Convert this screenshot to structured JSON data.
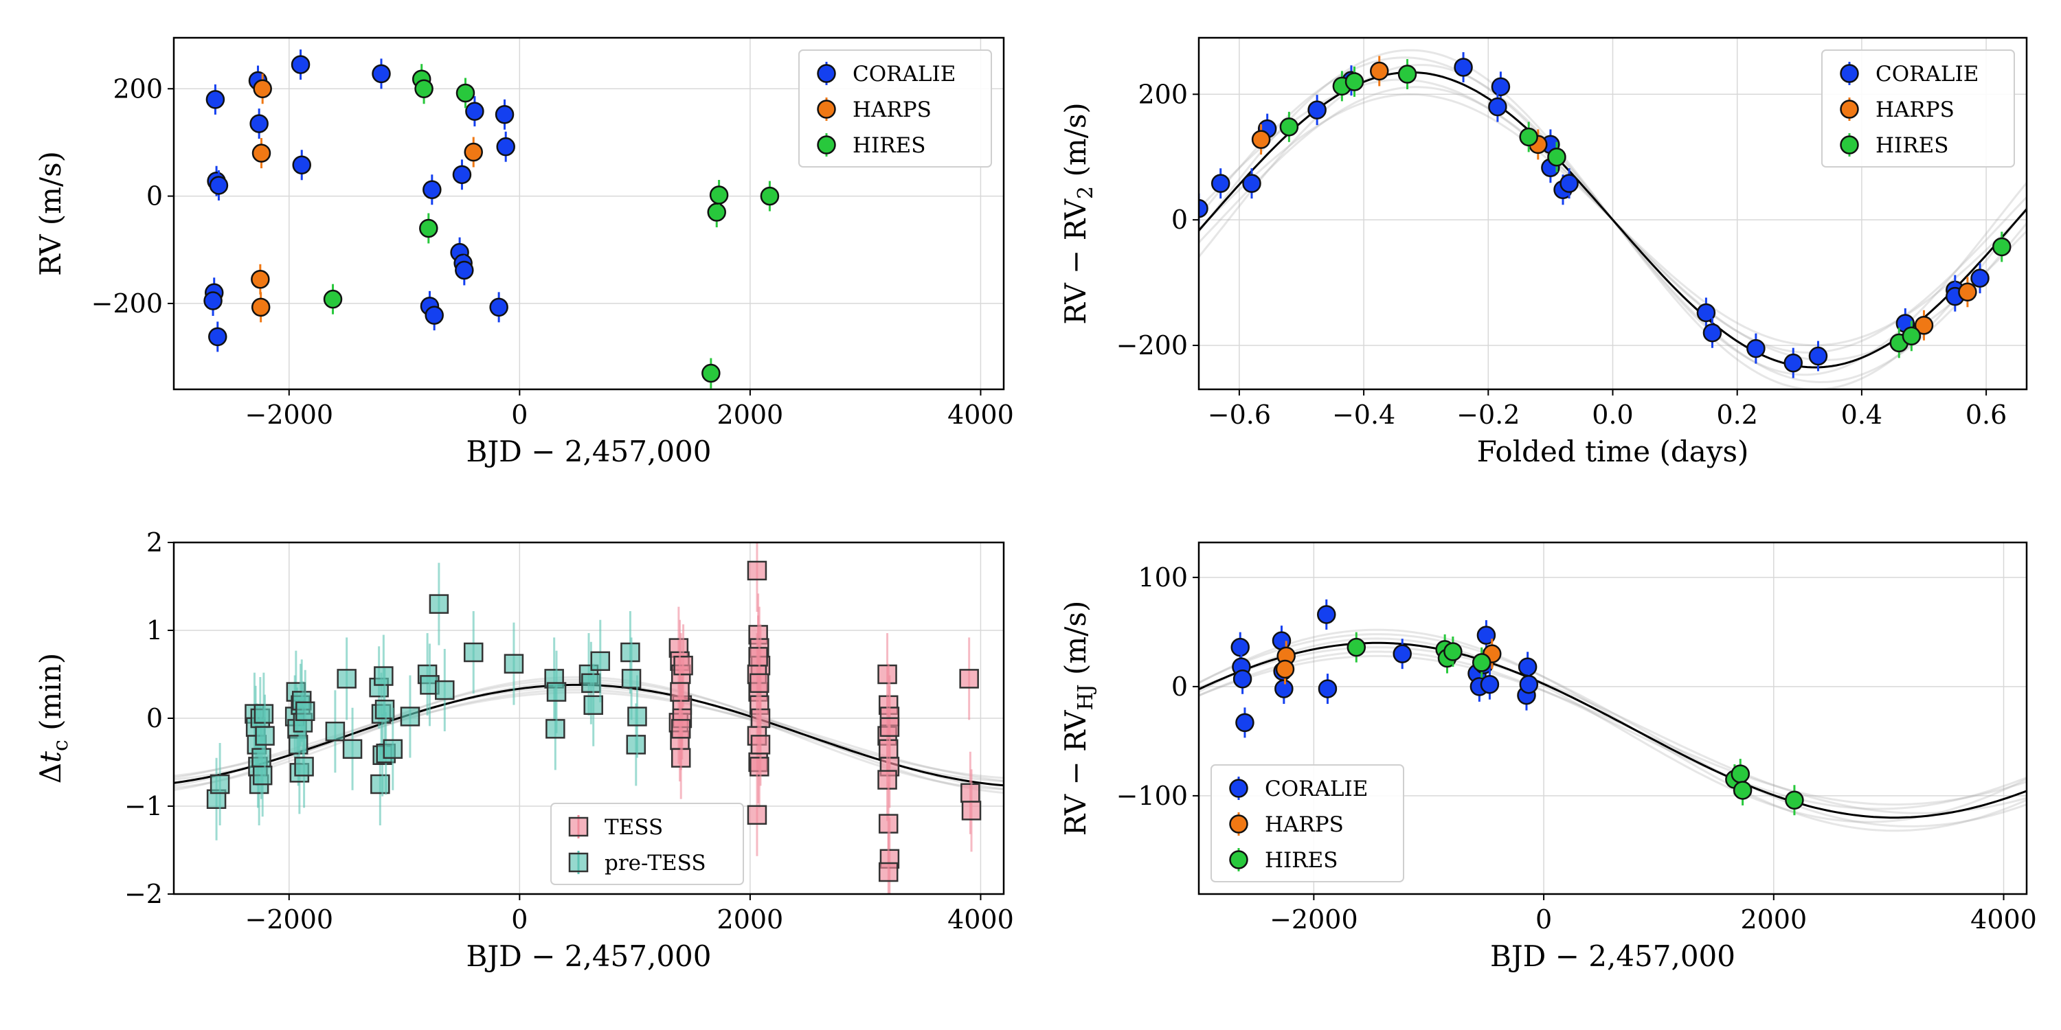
{
  "figure": {
    "colors": {
      "coralie": "#1440f0",
      "harps": "#f07814",
      "hires": "#28c83c",
      "tess": "#f08c9c",
      "pretess": "#5ec4b4",
      "model": "#000000"
    }
  },
  "chart_data": [
    {
      "type": "scatter",
      "title": "",
      "xlabel": "BJD − 2,457,000",
      "ylabel": "RV (m/s)",
      "xlim": [
        -3000,
        4200
      ],
      "ylim": [
        -360,
        295
      ],
      "xticks": [
        -2000,
        0,
        2000,
        4000
      ],
      "xtick_labels": [
        "−2000",
        "0",
        "2000",
        "4000"
      ],
      "yticks": [
        -200,
        0,
        200
      ],
      "ytick_labels": [
        "−200",
        "0",
        "200"
      ],
      "grid": true,
      "legend_position": "top-right",
      "legend": [
        "CORALIE",
        "HARPS",
        "HIRES"
      ],
      "series": [
        {
          "name": "CORALIE",
          "color": "#1440f0",
          "marker": "circle",
          "points": [
            [
              -2640,
              180
            ],
            [
              -2630,
              28
            ],
            [
              -2610,
              20
            ],
            [
              -2650,
              -180
            ],
            [
              -2660,
              -195
            ],
            [
              -2620,
              -262
            ],
            [
              -2270,
              215
            ],
            [
              -2260,
              135
            ],
            [
              -1900,
              245
            ],
            [
              -1890,
              58
            ],
            [
              -1200,
              228
            ],
            [
              -780,
              -205
            ],
            [
              -760,
              12
            ],
            [
              -740,
              -222
            ],
            [
              -520,
              -105
            ],
            [
              -500,
              40
            ],
            [
              -490,
              -125
            ],
            [
              -480,
              -138
            ],
            [
              -390,
              158
            ],
            [
              -180,
              -207
            ],
            [
              -130,
              152
            ],
            [
              -120,
              92
            ]
          ]
        },
        {
          "name": "HARPS",
          "color": "#f07814",
          "marker": "circle",
          "points": [
            [
              -2230,
              200
            ],
            [
              -2240,
              80
            ],
            [
              -2250,
              -155
            ],
            [
              -2245,
              -207
            ],
            [
              -400,
              82
            ]
          ]
        },
        {
          "name": "HIRES",
          "color": "#28c83c",
          "marker": "circle",
          "points": [
            [
              -1620,
              -192
            ],
            [
              -850,
              218
            ],
            [
              -830,
              200
            ],
            [
              -790,
              -60
            ],
            [
              -470,
              192
            ],
            [
              1660,
              -330
            ],
            [
              1710,
              -30
            ],
            [
              1730,
              2
            ],
            [
              2170,
              0
            ]
          ]
        }
      ]
    },
    {
      "type": "scatter",
      "title": "",
      "xlabel": "Folded time (days)",
      "ylabel": "RV − RV",
      "ylabel_sub": "2",
      "ylabel_suffix": " (m/s)",
      "xlim": [
        -0.665,
        0.665
      ],
      "ylim": [
        -270,
        290
      ],
      "xticks": [
        -0.6,
        -0.4,
        -0.2,
        0.0,
        0.2,
        0.4,
        0.6
      ],
      "xtick_labels": [
        "−0.6",
        "−0.4",
        "−0.2",
        "0.0",
        "0.2",
        "0.4",
        "0.6"
      ],
      "yticks": [
        -200,
        0,
        200
      ],
      "ytick_labels": [
        "−200",
        "0",
        "200"
      ],
      "grid": true,
      "legend_position": "top-right",
      "legend": [
        "CORALIE",
        "HARPS",
        "HIRES"
      ],
      "model": {
        "kind": "sine",
        "amplitude": 235,
        "period": 1.3,
        "zero_crossing": 0.0
      },
      "series": [
        {
          "name": "CORALIE",
          "color": "#1440f0",
          "marker": "circle",
          "points": [
            [
              -0.665,
              18
            ],
            [
              -0.63,
              58
            ],
            [
              -0.58,
              58
            ],
            [
              -0.555,
              145
            ],
            [
              -0.475,
              175
            ],
            [
              -0.42,
              222
            ],
            [
              -0.24,
              243
            ],
            [
              -0.18,
              212
            ],
            [
              -0.185,
              180
            ],
            [
              -0.1,
              120
            ],
            [
              -0.1,
              83
            ],
            [
              -0.08,
              48
            ],
            [
              -0.07,
              58
            ],
            [
              0.15,
              -148
            ],
            [
              0.16,
              -180
            ],
            [
              0.23,
              -205
            ],
            [
              0.29,
              -228
            ],
            [
              0.33,
              -217
            ],
            [
              0.47,
              -165
            ],
            [
              0.55,
              -112
            ],
            [
              0.55,
              -122
            ],
            [
              0.59,
              -93
            ]
          ]
        },
        {
          "name": "HARPS",
          "color": "#f07814",
          "marker": "circle",
          "points": [
            [
              -0.565,
              128
            ],
            [
              -0.375,
              237
            ],
            [
              -0.12,
              120
            ],
            [
              0.5,
              -168
            ],
            [
              0.57,
              -115
            ]
          ]
        },
        {
          "name": "HIRES",
          "color": "#28c83c",
          "marker": "circle",
          "points": [
            [
              -0.52,
              148
            ],
            [
              -0.435,
              213
            ],
            [
              -0.415,
              220
            ],
            [
              -0.33,
              232
            ],
            [
              -0.135,
              132
            ],
            [
              -0.09,
              100
            ],
            [
              0.46,
              -196
            ],
            [
              0.48,
              -185
            ],
            [
              0.625,
              -43
            ]
          ]
        }
      ]
    },
    {
      "type": "scatter",
      "title": "",
      "xlabel": "BJD − 2,457,000",
      "ylabel": "Δ",
      "ylabel_var": "t",
      "ylabel_sub": "c",
      "ylabel_suffix": " (min)",
      "xlim": [
        -3000,
        4200
      ],
      "ylim": [
        -2,
        2
      ],
      "xticks": [
        -2000,
        0,
        2000,
        4000
      ],
      "xtick_labels": [
        "−2000",
        "0",
        "2000",
        "4000"
      ],
      "yticks": [
        -2,
        -1,
        0,
        1,
        2
      ],
      "ytick_labels": [
        "−2",
        "−1",
        "0",
        "1",
        "2"
      ],
      "grid": true,
      "legend_position": "lower-center",
      "legend": [
        "TESS",
        "pre-TESS"
      ],
      "model": {
        "kind": "sine",
        "offset": -0.2,
        "amplitude": 0.58,
        "period": 8000,
        "phase_peak_x": 500
      },
      "series": [
        {
          "name": "pre-TESS",
          "color": "#5ec4b4",
          "marker": "square",
          "points": [
            [
              -2630,
              -0.92
            ],
            [
              -2600,
              -0.75
            ],
            [
              -2300,
              0.05
            ],
            [
              -2290,
              -0.1
            ],
            [
              -2280,
              -0.3
            ],
            [
              -2270,
              -0.55
            ],
            [
              -2260,
              -0.75
            ],
            [
              -2250,
              0.0
            ],
            [
              -2240,
              -0.45
            ],
            [
              -2230,
              -0.65
            ],
            [
              -2220,
              0.05
            ],
            [
              -2210,
              -0.2
            ],
            [
              -1950,
              0.02
            ],
            [
              -1940,
              0.3
            ],
            [
              -1930,
              -0.12
            ],
            [
              -1920,
              -0.3
            ],
            [
              -1910,
              -0.62
            ],
            [
              -1900,
              0.15
            ],
            [
              -1890,
              0.2
            ],
            [
              -1880,
              -0.05
            ],
            [
              -1870,
              -0.55
            ],
            [
              -1860,
              0.08
            ],
            [
              -1600,
              -0.15
            ],
            [
              -1500,
              0.45
            ],
            [
              -1450,
              -0.35
            ],
            [
              -1220,
              0.35
            ],
            [
              -1210,
              -0.75
            ],
            [
              -1200,
              0.05
            ],
            [
              -1190,
              -0.42
            ],
            [
              -1180,
              0.48
            ],
            [
              -1170,
              0.1
            ],
            [
              -1160,
              -0.4
            ],
            [
              -1100,
              -0.35
            ],
            [
              -950,
              0.02
            ],
            [
              -800,
              0.5
            ],
            [
              -780,
              0.38
            ],
            [
              -700,
              1.3
            ],
            [
              -650,
              0.32
            ],
            [
              -400,
              0.75
            ],
            [
              -50,
              0.62
            ],
            [
              300,
              0.45
            ],
            [
              310,
              -0.12
            ],
            [
              320,
              0.3
            ],
            [
              600,
              0.5
            ],
            [
              620,
              0.4
            ],
            [
              640,
              0.15
            ],
            [
              700,
              0.65
            ],
            [
              960,
              0.75
            ],
            [
              970,
              0.45
            ],
            [
              1010,
              -0.3
            ],
            [
              1020,
              0.02
            ]
          ]
        },
        {
          "name": "TESS",
          "color": "#f08c9c",
          "marker": "square",
          "points": [
            [
              1380,
              0.8
            ],
            [
              1390,
              0.65
            ],
            [
              1400,
              0.5
            ],
            [
              1410,
              0.15
            ],
            [
              1380,
              -0.05
            ],
            [
              1390,
              -0.25
            ],
            [
              1400,
              -0.45
            ],
            [
              1410,
              0.0
            ],
            [
              1420,
              0.6
            ],
            [
              1390,
              0.3
            ],
            [
              1400,
              -0.12
            ],
            [
              2060,
              1.68
            ],
            [
              2070,
              0.95
            ],
            [
              2080,
              0.8
            ],
            [
              2090,
              0.6
            ],
            [
              2060,
              0.5
            ],
            [
              2070,
              0.3
            ],
            [
              2080,
              0.15
            ],
            [
              2090,
              0.0
            ],
            [
              2060,
              -0.2
            ],
            [
              2070,
              -0.5
            ],
            [
              2080,
              -0.55
            ],
            [
              2090,
              -0.3
            ],
            [
              2060,
              -1.1
            ],
            [
              2070,
              0.7
            ],
            [
              2080,
              0.4
            ],
            [
              3190,
              0.5
            ],
            [
              3200,
              0.15
            ],
            [
              3210,
              0.02
            ],
            [
              3190,
              -0.2
            ],
            [
              3200,
              -0.35
            ],
            [
              3210,
              -0.55
            ],
            [
              3190,
              -0.7
            ],
            [
              3200,
              -1.2
            ],
            [
              3210,
              -1.6
            ],
            [
              3200,
              -1.75
            ],
            [
              3210,
              -0.1
            ],
            [
              3900,
              0.45
            ],
            [
              3910,
              -0.85
            ],
            [
              3920,
              -1.05
            ]
          ]
        }
      ]
    },
    {
      "type": "scatter",
      "title": "",
      "xlabel": "BJD − 2,457,000",
      "ylabel": "RV − RV",
      "ylabel_sub": "HJ",
      "ylabel_suffix": " (m/s)",
      "xlim": [
        -3000,
        4200
      ],
      "ylim": [
        -190,
        132
      ],
      "xticks": [
        -2000,
        0,
        2000,
        4000
      ],
      "xtick_labels": [
        "−2000",
        "0",
        "2000",
        "4000"
      ],
      "yticks": [
        -100,
        0,
        100
      ],
      "ytick_labels": [
        "−100",
        "0",
        "100"
      ],
      "grid": true,
      "legend_position": "lower-left",
      "legend": [
        "CORALIE",
        "HARPS",
        "HIRES"
      ],
      "model": {
        "kind": "sine",
        "offset": -40,
        "amplitude": 80,
        "period": 9000,
        "phase_peak_x": -1450
      },
      "series": [
        {
          "name": "CORALIE",
          "color": "#1440f0",
          "marker": "circle",
          "points": [
            [
              -2640,
              36
            ],
            [
              -2630,
              18
            ],
            [
              -2620,
              7
            ],
            [
              -2600,
              -33
            ],
            [
              -2280,
              42
            ],
            [
              -2270,
              14
            ],
            [
              -2260,
              -2
            ],
            [
              -1890,
              66
            ],
            [
              -1880,
              -2
            ],
            [
              -1230,
              30
            ],
            [
              -580,
              12
            ],
            [
              -560,
              0
            ],
            [
              -520,
              20
            ],
            [
              -500,
              47
            ],
            [
              -470,
              2
            ],
            [
              -150,
              -8
            ],
            [
              -140,
              18
            ],
            [
              -130,
              2
            ]
          ]
        },
        {
          "name": "HARPS",
          "color": "#f07814",
          "marker": "circle",
          "points": [
            [
              -2240,
              28
            ],
            [
              -2250,
              16
            ],
            [
              -450,
              30
            ]
          ]
        },
        {
          "name": "HIRES",
          "color": "#28c83c",
          "marker": "circle",
          "points": [
            [
              -1630,
              36
            ],
            [
              -860,
              34
            ],
            [
              -840,
              26
            ],
            [
              -790,
              32
            ],
            [
              -540,
              22
            ],
            [
              1660,
              -85
            ],
            [
              1710,
              -80
            ],
            [
              1730,
              -95
            ],
            [
              2180,
              -104
            ]
          ]
        }
      ]
    }
  ]
}
